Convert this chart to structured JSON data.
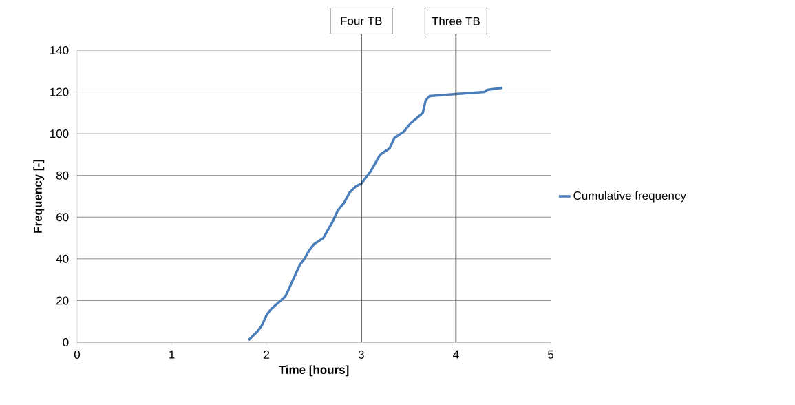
{
  "chart_data": {
    "type": "line",
    "xlabel": "Time [hours]",
    "ylabel": "Frequency [-]",
    "xlim": [
      0,
      5
    ],
    "xticks": [
      0,
      1,
      2,
      3,
      4,
      5
    ],
    "ylim": [
      0,
      140
    ],
    "yticks": [
      0,
      20,
      40,
      60,
      80,
      100,
      120,
      140
    ],
    "grid": "y",
    "legend": "right",
    "line_style": "solid",
    "series": [
      {
        "name": "Cumulative frequency",
        "color": "#4a7ebb",
        "x": [
          1.81,
          1.9,
          1.95,
          2.0,
          2.05,
          2.1,
          2.2,
          2.25,
          2.3,
          2.35,
          2.4,
          2.45,
          2.5,
          2.6,
          2.65,
          2.7,
          2.75,
          2.82,
          2.88,
          2.95,
          3.0,
          3.05,
          3.1,
          3.15,
          3.2,
          3.3,
          3.35,
          3.45,
          3.52,
          3.6,
          3.65,
          3.68,
          3.72,
          4.0,
          4.3,
          4.33,
          4.49
        ],
        "values": [
          1,
          5,
          8,
          13,
          16,
          18,
          22,
          27,
          32,
          37,
          40,
          44,
          47,
          50,
          54,
          58,
          63,
          67,
          72,
          75,
          76,
          79,
          82,
          86,
          90,
          93,
          98,
          101,
          105,
          108,
          110,
          116,
          118,
          119,
          120,
          121,
          122
        ]
      }
    ],
    "ref_lines": [
      {
        "axis": "x",
        "value": 3,
        "label": "Four TB",
        "color": "#000000"
      },
      {
        "axis": "x",
        "value": 4,
        "label": "Three TB",
        "color": "#000000"
      }
    ]
  }
}
